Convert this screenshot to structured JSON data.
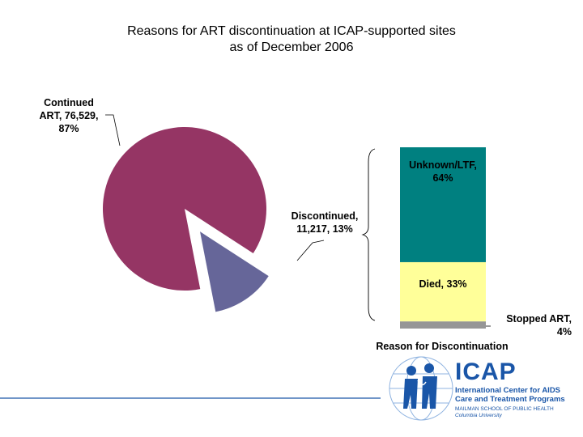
{
  "title_lines": [
    "Reasons for ART discontinuation at ICAP-supported sites",
    "as of December 2006"
  ],
  "chart_data": [
    {
      "type": "pie",
      "title": "",
      "slices": [
        {
          "label": "Continued ART",
          "value": 76529,
          "percent": 87,
          "color": "#953564"
        },
        {
          "label": "Discontinued",
          "value": 11217,
          "percent": 13,
          "color": "#666699",
          "exploded": true
        }
      ],
      "data_labels": [
        {
          "lines": [
            "Continued",
            "ART, 76,529,",
            "87%"
          ]
        },
        {
          "lines": [
            "Discontinued,",
            "11,217, 13%"
          ]
        }
      ]
    },
    {
      "type": "bar",
      "stacked": true,
      "xlabel": "Reason for Discontinuation",
      "segments": [
        {
          "label": "Stopped ART",
          "percent": 4,
          "color": "#969696"
        },
        {
          "label": "Died",
          "percent": 33,
          "color": "#ffff99"
        },
        {
          "label": "Unknown/LTF",
          "percent": 64,
          "color": "#008080"
        }
      ],
      "data_labels": [
        {
          "lines": [
            "Unknown/LTF,",
            "64%"
          ]
        },
        {
          "lines": [
            "Died, 33%"
          ]
        },
        {
          "lines": [
            "Stopped ART,",
            "4%"
          ]
        }
      ]
    }
  ],
  "logo": {
    "name": "ICAP",
    "line1": "International Center for AIDS",
    "line2": "Care and Treatment Programs",
    "line3": "MAILMAN SCHOOL OF PUBLIC HEALTH",
    "line4": "Columbia University",
    "color": "#1a56a8"
  }
}
